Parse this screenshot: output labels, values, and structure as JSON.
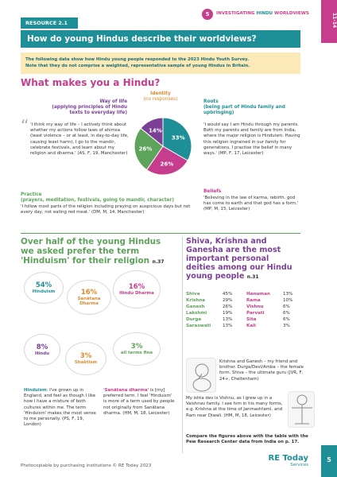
{
  "header": {
    "resource": "RESOURCE 2.1",
    "section_number": "5",
    "section_title_a": "INVESTIGATING ",
    "section_title_b": "HINDU",
    "section_title_c": " WORLDVIEWS",
    "age_range": "11-14"
  },
  "title": "How do young Hindus describe their worldviews?",
  "intro": {
    "line1": "The following data show how Hindu young people responded to the 2023 Hindu Youth Survey.",
    "line2": "Note that they do not comprise a weighted, representative sample of young Hindus in Britain."
  },
  "section1": {
    "heading": "What makes you a Hindu?",
    "identity_label": "Identity",
    "identity_sub": "(no responses)",
    "way_of_life_title": "Way of life",
    "way_of_life_sub": "(applying principles of Hindu texts to everyday life)",
    "way_of_life_quote": "'I think my way of life – I actively think about whether my actions follow laws of ahimsa (least violence – or at least, in day-to-day life, causing least harm), I go to the mandir, celebrate festivals, and learn about my religion and dharma.' (AS, F, 19, Manchester)",
    "roots_title": "Roots",
    "roots_sub": "(being part of Hindu family and upbringing)",
    "roots_quote": "'I would say I am Hindu through my parents. Both my parents and family are from India, where the major religion is Hinduism. Having this religion ingrained in our family for generations, I practise the belief in many ways.' (MP, F, 17, Leicester)",
    "practice_title": "Practice",
    "practice_sub": "(prayers, meditation, festivals, going to mandir, character)",
    "practice_quote": "'I follow most parts of the religion including praying on auspicious days but not every day, not eating red meat.' (DM, M, 14, Manchester)",
    "beliefs_title": "Beliefs",
    "beliefs_quote": "'Believing in the law of karma, rebirth, god has come to earth and that god has a form.' (MP, M, 15, Leicester)"
  },
  "chart_data": {
    "type": "pie",
    "labels": [
      "Roots",
      "Beliefs",
      "Practice",
      "Way of life"
    ],
    "values": [
      33,
      26,
      26,
      14
    ],
    "display": [
      "33%",
      "26%",
      "26%",
      "14%"
    ],
    "colors": [
      "#1f8f97",
      "#c73d8d",
      "#5da35a",
      "#7b3f95"
    ]
  },
  "section2": {
    "heading_line1": "Over half of the young Hindus",
    "heading_line2": "we asked prefer the term",
    "heading_line3": "'Hinduism' for their religion",
    "n": "n.37",
    "bubbles": [
      {
        "pct": "54%",
        "label": "Hinduism",
        "color": "#1f8f97"
      },
      {
        "pct": "16%",
        "label": "Sanātana Dharma",
        "color": "#e08a2c"
      },
      {
        "pct": "16%",
        "label": "Hindu Dharma",
        "color": "#c73d8d"
      },
      {
        "pct": "8%",
        "label": "Hindu",
        "color": "#7b3f95"
      },
      {
        "pct": "3%",
        "label": "Shaktism",
        "color": "#e08a2c"
      },
      {
        "pct": "3%",
        "label": "all terms fine",
        "color": "#5da35a"
      }
    ],
    "quote1_term": "Hinduism",
    "quote1": ": I've grown up in England, and feel as though I like how I have a mixture of both cultures within me. The term 'Hinduism' makes the most sense to me personally. (PS, F, 19, London)",
    "quote2_term": "'Sanātana dharma'",
    "quote2": " is [my] preferred term. I feel 'Hinduism' is more of a term used by people not originally from Sanātana dharma. (HM, M, 18, Leicester)"
  },
  "section3": {
    "heading_line1": "Shiva, Krishna and",
    "heading_line2": "Ganesha are the most",
    "heading_line3": "important personal",
    "heading_line4": "deities among our Hindu",
    "heading_line5": "young people",
    "n": "n.31",
    "deities": [
      {
        "name": "Shiva",
        "pct": "45%",
        "name2": "Hanuman",
        "pct2": "13%"
      },
      {
        "name": "Krishna",
        "pct": "29%",
        "name2": "Rama",
        "pct2": "10%"
      },
      {
        "name": "Ganesh",
        "pct": "26%",
        "name2": "Vishnu",
        "pct2": "6%"
      },
      {
        "name": "Lakshmi",
        "pct": "19%",
        "name2": "Parvati",
        "pct2": "6%"
      },
      {
        "name": "Durga",
        "pct": "13%",
        "name2": "Sita",
        "pct2": "6%"
      },
      {
        "name": "Saraswati",
        "pct": "13%",
        "name2": "Kali",
        "pct2": "3%"
      }
    ],
    "quote1": "Krishna and Ganesh – my friend and brother. Durga/Devi/Amba – the female form. Shiva – the ultimate guru (JVR, F, 24+, Cheltenham)",
    "quote2": "My ishta dev is Vishnu, as I grew up in a Vaishnav family. I see him in his many forms, e.g. Krishna at the time of Janmashtami, and Ram near Diwali. (HM, M, 18, Leicester)",
    "compare": "Compare the figures above with the table with the Pew Research Center data from India on p. 17."
  },
  "footer": {
    "copyright": "Photocopiable by purchasing institutions © RE Today 2023",
    "logo_line1": "RE Today",
    "logo_line2": "Services",
    "page": "5"
  }
}
